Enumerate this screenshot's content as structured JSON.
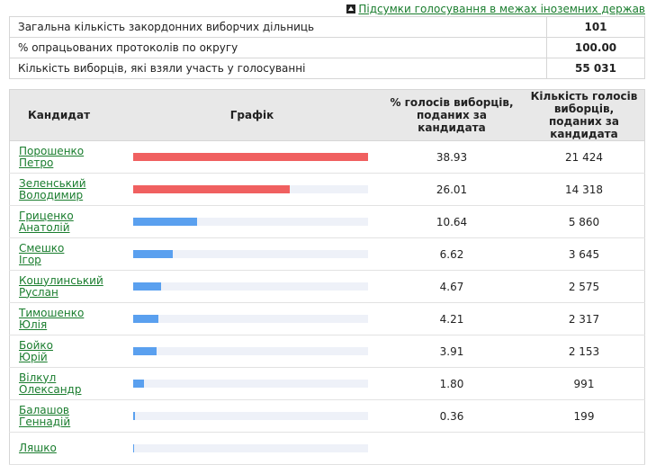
{
  "top_link": {
    "text": "Підсумки голосування в межах іноземних держав",
    "icon": "small-triangle-icon"
  },
  "summary": [
    {
      "label": "Загальна кількість закордонних виборчих дільниць",
      "value": "101"
    },
    {
      "label": "% опрацьованих протоколів по округу",
      "value": "100.00"
    },
    {
      "label": "Кількість виборців, які взяли участь у голосуванні",
      "value": "55 031"
    }
  ],
  "results": {
    "headers": {
      "candidate": "Кандидат",
      "graph": "Графік",
      "percent": "% голосів виборців, поданих за кандидата",
      "votes": "Кількість голосів виборців, поданих за кандидата"
    },
    "colors": {
      "top": "#f06060",
      "other": "#5aa0ef"
    },
    "rows": [
      {
        "name1": "Порошенко",
        "name2": "Петро",
        "percent": "38.93",
        "votes": "21 424",
        "share": 38.93,
        "top": true
      },
      {
        "name1": "Зеленський",
        "name2": "Володимир",
        "percent": "26.01",
        "votes": "14 318",
        "share": 26.01,
        "top": true
      },
      {
        "name1": "Гриценко",
        "name2": "Анатолій",
        "percent": "10.64",
        "votes": "5 860",
        "share": 10.64,
        "top": false
      },
      {
        "name1": "Смешко",
        "name2": "Ігор",
        "percent": "6.62",
        "votes": "3 645",
        "share": 6.62,
        "top": false
      },
      {
        "name1": "Кошулинський",
        "name2": "Руслан",
        "percent": "4.67",
        "votes": "2 575",
        "share": 4.67,
        "top": false
      },
      {
        "name1": "Тимошенко",
        "name2": "Юлія",
        "percent": "4.21",
        "votes": "2 317",
        "share": 4.21,
        "top": false
      },
      {
        "name1": "Бойко",
        "name2": "Юрій",
        "percent": "3.91",
        "votes": "2 153",
        "share": 3.91,
        "top": false
      },
      {
        "name1": "Вілкул",
        "name2": "Олександр",
        "percent": "1.80",
        "votes": "991",
        "share": 1.8,
        "top": false
      },
      {
        "name1": "Балашов",
        "name2": "Геннадій",
        "percent": "0.36",
        "votes": "199",
        "share": 0.36,
        "top": false
      },
      {
        "name1": "Ляшко",
        "name2": "",
        "percent": "",
        "votes": "",
        "share": 0.2,
        "top": false
      }
    ]
  }
}
